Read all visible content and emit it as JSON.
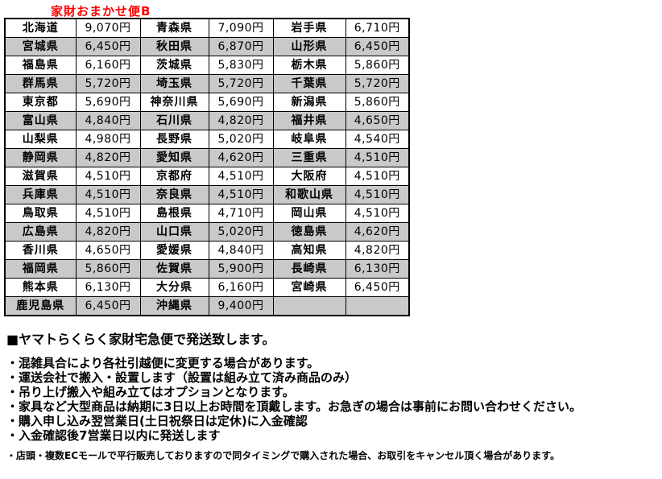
{
  "title": "家財おまかせ便B",
  "colors": {
    "title-red": "#ff0000",
    "row-shade": "#c9c9c9",
    "border-color": "#000000"
  },
  "table": {
    "rows": [
      {
        "cells": [
          "北海道",
          "9,070円",
          "青森県",
          "7,090円",
          "岩手県",
          "6,710円"
        ]
      },
      {
        "cells": [
          "宮城県",
          "6,450円",
          "秋田県",
          "6,870円",
          "山形県",
          "6,450円"
        ]
      },
      {
        "cells": [
          "福島県",
          "6,160円",
          "茨城県",
          "5,830円",
          "栃木県",
          "5,860円"
        ]
      },
      {
        "cells": [
          "群馬県",
          "5,720円",
          "埼玉県",
          "5,720円",
          "千葉県",
          "5,720円"
        ]
      },
      {
        "cells": [
          "東京都",
          "5,690円",
          "神奈川県",
          "5,690円",
          "新潟県",
          "5,860円"
        ]
      },
      {
        "cells": [
          "富山県",
          "4,840円",
          "石川県",
          "4,820円",
          "福井県",
          "4,650円"
        ]
      },
      {
        "cells": [
          "山梨県",
          "4,980円",
          "長野県",
          "5,020円",
          "岐阜県",
          "4,540円"
        ]
      },
      {
        "cells": [
          "静岡県",
          "4,820円",
          "愛知県",
          "4,620円",
          "三重県",
          "4,510円"
        ]
      },
      {
        "cells": [
          "滋賀県",
          "4,510円",
          "京都府",
          "4,510円",
          "大阪府",
          "4,510円"
        ]
      },
      {
        "cells": [
          "兵庫県",
          "4,510円",
          "奈良県",
          "4,510円",
          "和歌山県",
          "4,510円"
        ]
      },
      {
        "cells": [
          "鳥取県",
          "4,510円",
          "島根県",
          "4,710円",
          "岡山県",
          "4,510円"
        ]
      },
      {
        "cells": [
          "広島県",
          "4,820円",
          "山口県",
          "5,020円",
          "徳島県",
          "4,620円"
        ]
      },
      {
        "cells": [
          "香川県",
          "4,650円",
          "愛媛県",
          "4,840円",
          "高知県",
          "4,820円"
        ]
      },
      {
        "cells": [
          "福岡県",
          "5,860円",
          "佐賀県",
          "5,900円",
          "長崎県",
          "6,130円"
        ]
      },
      {
        "cells": [
          "熊本県",
          "6,130円",
          "大分県",
          "6,160円",
          "宮崎県",
          "6,450円"
        ]
      },
      {
        "cells": [
          "鹿児島県",
          "6,450円",
          "沖縄県",
          "9,400円",
          "",
          ""
        ]
      }
    ]
  },
  "notes": {
    "heading": "■ヤマトらくらく家財宅急便で発送致します。",
    "bullets": [
      "・混雑具合により各社引越便に変更する場合があります。",
      "・運送会社で搬入・設置します（設置は組み立て済み商品のみ）",
      "・吊り上げ搬入や組み立てはオプションとなります。",
      "・家具など大型商品は納期に3日以上お時間を頂戴します。お急ぎの場合は事前にお問い合わせください。",
      "・購入申し込み翌営業日(土日祝祭日は定休)に入金確認",
      "・入金確認後7営業日以内に発送します"
    ],
    "footnote": "・店頭・複数ECモールで平行販売しておりますので同タイミングで購入された場合、お取引をキャンセル頂く場合があります。"
  }
}
